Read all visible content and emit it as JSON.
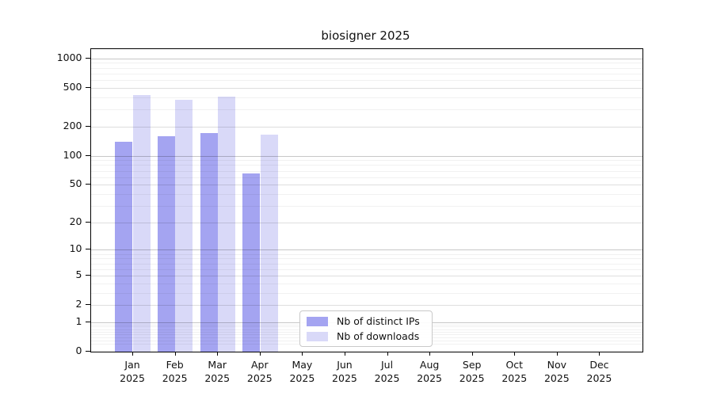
{
  "title": "biosigner 2025",
  "chart_data": {
    "type": "bar",
    "title": "biosigner 2025",
    "categories": [
      "Jan",
      "Feb",
      "Mar",
      "Apr",
      "May",
      "Jun",
      "Jul",
      "Aug",
      "Sep",
      "Oct",
      "Nov",
      "Dec"
    ],
    "year_label": "2025",
    "series": [
      {
        "name": "Nb of distinct IPs",
        "color": "#a4a4f1",
        "values": [
          140,
          160,
          172,
          66,
          0,
          0,
          0,
          0,
          0,
          0,
          0,
          0
        ]
      },
      {
        "name": "Nb of downloads",
        "color": "#d9d9f8",
        "values": [
          420,
          380,
          405,
          165,
          0,
          0,
          0,
          0,
          0,
          0,
          0,
          0
        ]
      }
    ],
    "xlabel": "",
    "ylabel": "",
    "yaxis": {
      "scale": "symlog (log10(1+v))",
      "ticks": [
        0,
        1,
        2,
        5,
        10,
        20,
        50,
        100,
        200,
        500,
        1000
      ],
      "range": [
        0,
        1250
      ]
    },
    "grid": "on",
    "legend_position": "lower-center-inside"
  }
}
